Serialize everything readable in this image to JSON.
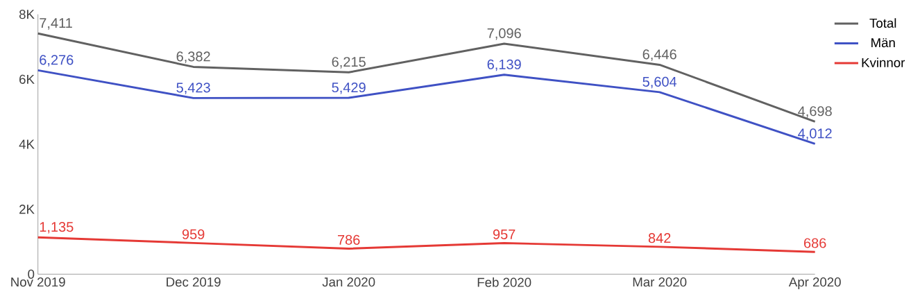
{
  "chart_data": {
    "type": "line",
    "categories": [
      "Nov 2019",
      "Dec 2019",
      "Jan 2020",
      "Feb 2020",
      "Mar 2020",
      "Apr 2020"
    ],
    "series": [
      {
        "name": "Total",
        "color": "#616161",
        "values": [
          7411,
          6382,
          6215,
          7096,
          6446,
          4698
        ],
        "value_labels": [
          "7,411",
          "6,382",
          "6,215",
          "7,096",
          "6,446",
          "4,698"
        ]
      },
      {
        "name": "Män",
        "color": "#3f51c4",
        "values": [
          6276,
          5423,
          5429,
          6139,
          5604,
          4012
        ],
        "value_labels": [
          "6,276",
          "5,423",
          "5,429",
          "6,139",
          "5,604",
          "4,012"
        ]
      },
      {
        "name": "Kvinnor",
        "color": "#e53935",
        "values": [
          1135,
          959,
          786,
          957,
          842,
          686
        ],
        "value_labels": [
          "1,135",
          "959",
          "786",
          "957",
          "842",
          "686"
        ]
      }
    ],
    "ylim": [
      0,
      8000
    ],
    "yticks": [
      0,
      {
        "value": 2000,
        "label": "2K"
      },
      {
        "value": 4000,
        "label": "4K"
      },
      {
        "value": 6000,
        "label": "6K"
      },
      {
        "value": 8000,
        "label": "8K"
      }
    ],
    "legend": "top right"
  }
}
